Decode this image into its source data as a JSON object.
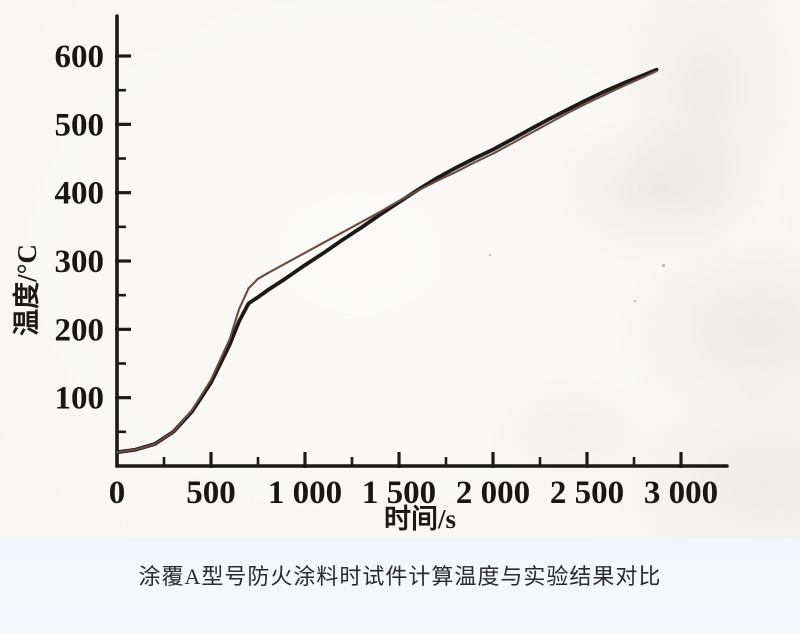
{
  "figure": {
    "caption": "涂覆A型号防火涂料时试件计算温度与实验结果对比"
  },
  "chart_data": {
    "type": "line",
    "title": "",
    "xlabel": "时间/s",
    "ylabel": "温度/°C",
    "xlim": [
      0,
      3220
    ],
    "ylim": [
      0,
      660
    ],
    "x_ticks": [
      0,
      500,
      1000,
      1500,
      2000,
      2500,
      3000
    ],
    "x_tick_labels": [
      "0",
      "500",
      "1 000",
      "1 500",
      "2 000",
      "2 500",
      "3 000"
    ],
    "x_minor_ticks": [
      250,
      750,
      1250,
      1750,
      2250,
      2750
    ],
    "y_ticks": [
      100,
      200,
      300,
      400,
      500,
      600
    ],
    "y_tick_labels": [
      "100",
      "200",
      "300",
      "400",
      "500",
      "600"
    ],
    "y_minor_ticks": [
      50,
      150,
      250,
      350,
      450,
      550
    ],
    "grid": false,
    "legend": "none (two unlabeled curves)",
    "x": [
      0,
      100,
      200,
      300,
      400,
      500,
      600,
      650,
      700,
      750,
      800,
      900,
      1000,
      1100,
      1200,
      1300,
      1400,
      1500,
      1600,
      1700,
      1800,
      1900,
      2000,
      2100,
      2200,
      2300,
      2400,
      2500,
      2600,
      2700,
      2800,
      2870
    ],
    "series": [
      {
        "id": "curve-black-thick",
        "appearance": "thick black line",
        "color": "#1b1a19",
        "stroke_width": 3.8,
        "y": [
          20,
          24,
          32,
          50,
          80,
          122,
          178,
          212,
          238,
          247,
          257,
          275,
          294,
          312,
          331,
          349,
          368,
          386,
          404,
          421,
          436,
          450,
          463,
          478,
          493,
          508,
          522,
          536,
          549,
          561,
          572,
          580
        ]
      },
      {
        "id": "curve-red-thin",
        "appearance": "thin dark-red line",
        "color": "#6e4a42",
        "stroke_width": 2.1,
        "y": [
          20,
          24,
          32,
          50,
          82,
          126,
          186,
          230,
          260,
          274,
          282,
          297,
          312,
          327,
          342,
          357,
          372,
          388,
          403,
          417,
          430,
          444,
          457,
          472,
          487,
          502,
          517,
          531,
          544,
          557,
          569,
          578
        ]
      }
    ],
    "axis_color": "#1b1a19"
  }
}
